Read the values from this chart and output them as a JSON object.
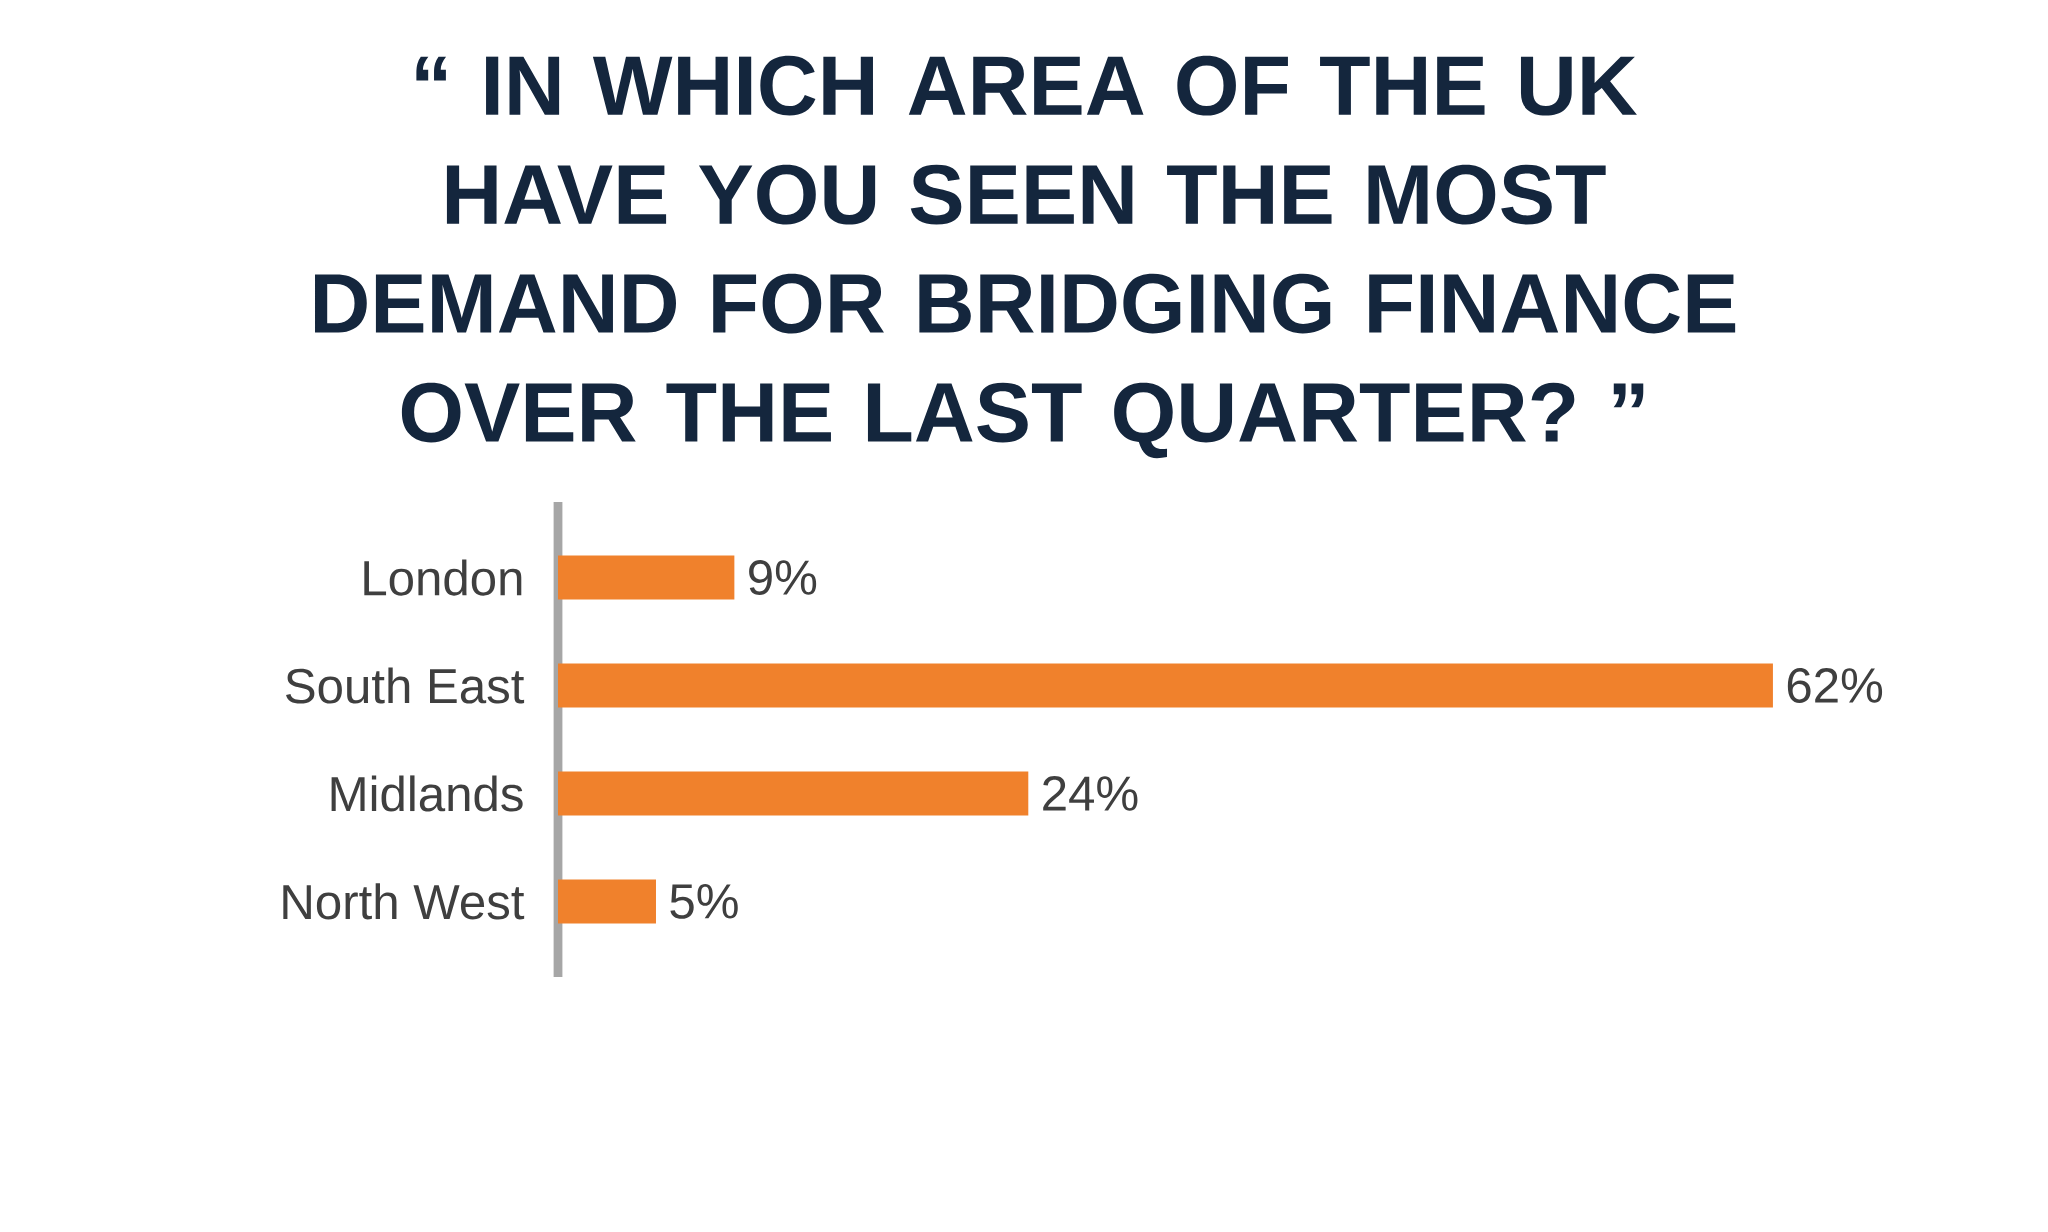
{
  "chart_data": {
    "type": "bar",
    "orientation": "horizontal",
    "title": "“ IN WHICH AREA OF THE UK HAVE YOU SEEN THE MOST DEMAND FOR BRIDGING FINANCE OVER THE LAST QUARTER? ”",
    "categories": [
      "London",
      "South East",
      "Midlands",
      "North West"
    ],
    "values": [
      9,
      62,
      24,
      5
    ],
    "value_labels": [
      "9%",
      "62%",
      "24%",
      "5%"
    ],
    "color": "#f0812c"
  }
}
